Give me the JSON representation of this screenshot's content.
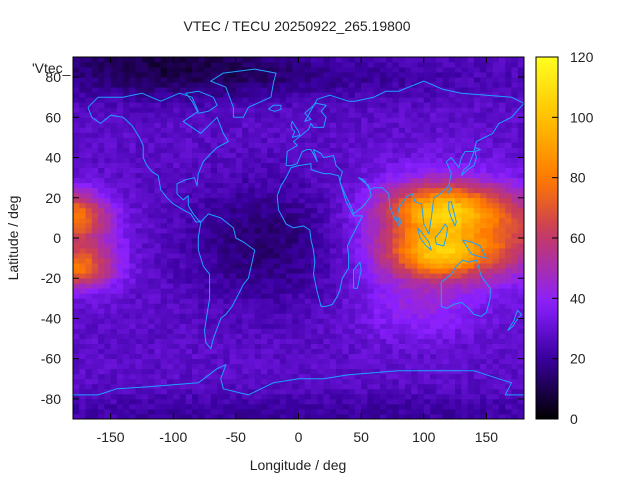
{
  "chart_data": {
    "type": "heatmap",
    "title": "VTEC / TECU 20250922_265.19800",
    "xlabel": "Longitude / deg",
    "ylabel": "Latitude / deg",
    "xlim": [
      -180,
      180
    ],
    "ylim": [
      -90,
      90
    ],
    "x_ticks": [
      -150,
      -100,
      -50,
      0,
      50,
      100,
      150
    ],
    "y_ticks": [
      -80,
      -60,
      -40,
      -20,
      0,
      20,
      40,
      60,
      80
    ],
    "x_tick_labels": [
      "-150",
      "-100",
      "-50",
      "0",
      "50",
      "100",
      "150"
    ],
    "y_tick_labels": [
      "-80",
      "-60",
      "-40",
      "-20",
      "0",
      "20",
      "40",
      "60",
      "80"
    ],
    "colorbar": {
      "range": [
        0,
        120
      ],
      "ticks": [
        0,
        20,
        40,
        60,
        80,
        100,
        120
      ],
      "tick_labels": [
        "0",
        "20",
        "40",
        "60",
        "80",
        "100",
        "120"
      ],
      "palette": [
        "#000000",
        "#3a00a0",
        "#8a20ff",
        "#c83c5a",
        "#ff7800",
        "#ffc000",
        "#ffff20"
      ]
    },
    "legend_label": "'Vtec_",
    "coastline_color": "#1ea0ff",
    "grid_resolution_deg": {
      "lon": 5,
      "lat": 2.5
    },
    "features": [
      {
        "name": "asia-pacific-peak",
        "lon": 115,
        "lat": 5,
        "peak_vtec": 100
      },
      {
        "name": "pacific-edge-crest-north",
        "lon": -180,
        "lat": 10,
        "peak_vtec": 72
      },
      {
        "name": "pacific-edge-crest-south",
        "lon": -180,
        "lat": -15,
        "peak_vtec": 68
      },
      {
        "name": "atlantic-equatorial-trough",
        "lon": -20,
        "lat": -5,
        "min_vtec": 12
      },
      {
        "name": "north-polar-low",
        "lon": -100,
        "lat": 85,
        "min_vtec": 8
      },
      {
        "name": "antarctic-low",
        "lon": 0,
        "lat": -85,
        "min_vtec": 18
      }
    ]
  }
}
